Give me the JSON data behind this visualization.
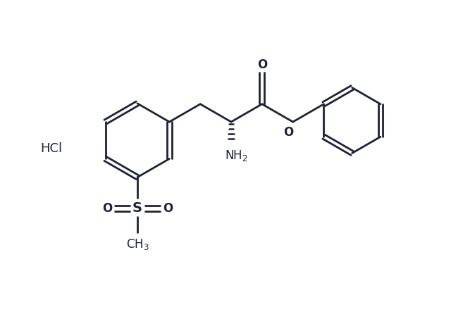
{
  "background_color": "#ffffff",
  "line_color": "#1e2235",
  "line_width": 2.0,
  "font_size": 12,
  "figsize": [
    6.4,
    4.7
  ],
  "dpi": 100,
  "xlim": [
    0,
    10
  ],
  "ylim": [
    0,
    7.8
  ]
}
